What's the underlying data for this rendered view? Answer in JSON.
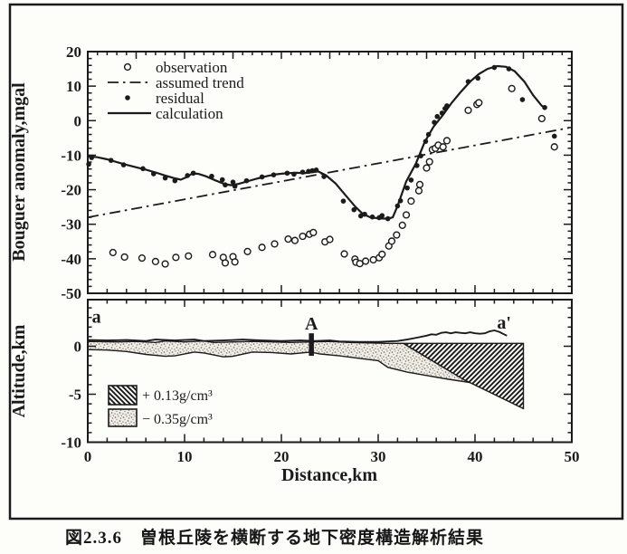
{
  "figure": {
    "caption_label": "図2.3.6",
    "caption_text": "曽根丘陵を横断する地下密度構造解析結果"
  },
  "colors": {
    "ink": "#1b1b1b",
    "paper": "#fdfdfa",
    "stipple_background": "#f2efe9",
    "stipple_dot": "#7e7a72"
  },
  "chart_data": [
    {
      "type": "scatter",
      "panel": "top",
      "title": "",
      "xlabel": "",
      "ylabel": "Bouguer anomaly,mgal",
      "xlim": [
        0,
        50
      ],
      "ylim": [
        -50,
        20
      ],
      "x_ticks": [
        0,
        10,
        20,
        30,
        40,
        50
      ],
      "y_ticks": [
        20,
        10,
        0,
        -10,
        -20,
        -30,
        -40,
        -50
      ],
      "grid": false,
      "legend_position": "top-left-inside",
      "series": [
        {
          "name": "observation",
          "type": "scatter",
          "marker": "open-circle",
          "points": [
            [
              2.6,
              -38.2
            ],
            [
              3.8,
              -39.5
            ],
            [
              5.6,
              -39.8
            ],
            [
              7.0,
              -40.8
            ],
            [
              8.0,
              -41.5
            ],
            [
              9.1,
              -39.6
            ],
            [
              10.4,
              -39.2
            ],
            [
              12.9,
              -38.8
            ],
            [
              14.0,
              -39.6
            ],
            [
              14.2,
              -41.2
            ],
            [
              15.0,
              -39.4
            ],
            [
              15.2,
              -40.9
            ],
            [
              16.5,
              -37.9
            ],
            [
              18.0,
              -36.7
            ],
            [
              19.3,
              -35.7
            ],
            [
              20.7,
              -34.3
            ],
            [
              21.4,
              -34.7
            ],
            [
              22.2,
              -33.5
            ],
            [
              22.9,
              -32.9
            ],
            [
              23.3,
              -32.4
            ],
            [
              24.5,
              -35.1
            ],
            [
              25.0,
              -34.4
            ],
            [
              26.5,
              -38.6
            ],
            [
              27.6,
              -40.1
            ],
            [
              27.7,
              -41.0
            ],
            [
              28.1,
              -41.4
            ],
            [
              28.7,
              -40.7
            ],
            [
              29.5,
              -40.3
            ],
            [
              30.1,
              -39.7
            ],
            [
              30.4,
              -38.7
            ],
            [
              31.1,
              -36.3
            ],
            [
              31.4,
              -34.9
            ],
            [
              31.9,
              -33.1
            ],
            [
              32.5,
              -30.3
            ],
            [
              32.9,
              -27.3
            ],
            [
              33.4,
              -23.3
            ],
            [
              34.2,
              -20.3
            ],
            [
              34.3,
              -18.5
            ],
            [
              35.0,
              -13.7
            ],
            [
              35.3,
              -11.9
            ],
            [
              35.6,
              -8.4
            ],
            [
              35.9,
              -8.0
            ],
            [
              36.2,
              -7.1
            ],
            [
              36.7,
              -7.6
            ],
            [
              37.1,
              -5.8
            ],
            [
              39.3,
              3.0
            ],
            [
              40.2,
              4.7
            ],
            [
              40.4,
              5.2
            ],
            [
              43.8,
              9.3
            ],
            [
              46.9,
              0.6
            ],
            [
              48.2,
              -7.6
            ]
          ]
        },
        {
          "name": "assumed trend",
          "type": "line",
          "style": "dash-dot",
          "points": [
            [
              0,
              -28
            ],
            [
              49.7,
              -2.1
            ]
          ]
        },
        {
          "name": "residual",
          "type": "scatter",
          "marker": "filled-circle",
          "points": [
            [
              0.1,
              -12.6
            ],
            [
              0.4,
              -10.7
            ],
            [
              2.4,
              -11.5
            ],
            [
              3.7,
              -12.8
            ],
            [
              5.7,
              -13.9
            ],
            [
              6.8,
              -15.4
            ],
            [
              8.0,
              -16.6
            ],
            [
              9.0,
              -17.4
            ],
            [
              10.3,
              -15.9
            ],
            [
              10.9,
              -15.2
            ],
            [
              12.8,
              -16.1
            ],
            [
              13.9,
              -17.1
            ],
            [
              14.2,
              -18.6
            ],
            [
              15.0,
              -17.8
            ],
            [
              15.2,
              -19.0
            ],
            [
              16.4,
              -17.4
            ],
            [
              18.0,
              -16.3
            ],
            [
              19.2,
              -15.7
            ],
            [
              20.6,
              -15.2
            ],
            [
              21.3,
              -15.5
            ],
            [
              22.2,
              -14.9
            ],
            [
              22.8,
              -14.7
            ],
            [
              23.2,
              -14.5
            ],
            [
              23.6,
              -14.3
            ],
            [
              24.4,
              -16.2
            ],
            [
              26.4,
              -23.3
            ],
            [
              27.5,
              -25.8
            ],
            [
              28.2,
              -27.6
            ],
            [
              28.6,
              -27.1
            ],
            [
              29.4,
              -27.9
            ],
            [
              30.1,
              -28.1
            ],
            [
              30.4,
              -27.5
            ],
            [
              31.0,
              -28.4
            ],
            [
              32.0,
              -24.7
            ],
            [
              32.3,
              -23.2
            ],
            [
              33.0,
              -19.5
            ],
            [
              33.4,
              -17.2
            ],
            [
              34.0,
              -13.0
            ],
            [
              34.4,
              -10.2
            ],
            [
              34.9,
              -6.0
            ],
            [
              35.2,
              -4.0
            ],
            [
              35.8,
              -0.5
            ],
            [
              36.1,
              1.2
            ],
            [
              36.6,
              2.2
            ],
            [
              36.9,
              3.5
            ],
            [
              37.1,
              4.3
            ],
            [
              39.3,
              11.3
            ],
            [
              40.3,
              12.3
            ],
            [
              42.0,
              15.4
            ],
            [
              43.5,
              15.0
            ],
            [
              44.9,
              6.1
            ],
            [
              47.2,
              3.8
            ],
            [
              48.2,
              -4.5
            ]
          ]
        },
        {
          "name": "calculation",
          "type": "line",
          "style": "solid",
          "points": [
            [
              0,
              -10.3
            ],
            [
              1,
              -10.6
            ],
            [
              2,
              -11.2
            ],
            [
              3,
              -12.0
            ],
            [
              4,
              -12.8
            ],
            [
              5,
              -13.5
            ],
            [
              6,
              -14.2
            ],
            [
              7,
              -15.0
            ],
            [
              8,
              -15.9
            ],
            [
              9,
              -16.7
            ],
            [
              9.6,
              -17.1
            ],
            [
              10.2,
              -16.4
            ],
            [
              10.8,
              -15.3
            ],
            [
              11.4,
              -15.4
            ],
            [
              12.2,
              -16.1
            ],
            [
              13.2,
              -17.3
            ],
            [
              14.2,
              -18.4
            ],
            [
              14.8,
              -18.7
            ],
            [
              15.6,
              -18.3
            ],
            [
              16.6,
              -17.5
            ],
            [
              17.6,
              -16.7
            ],
            [
              18.6,
              -16.0
            ],
            [
              19.6,
              -15.5
            ],
            [
              20.6,
              -15.2
            ],
            [
              21.6,
              -15.1
            ],
            [
              22.4,
              -15.2
            ],
            [
              23.2,
              -14.9
            ],
            [
              23.8,
              -14.7
            ],
            [
              24.6,
              -15.8
            ],
            [
              25.6,
              -18.2
            ],
            [
              26.6,
              -21.5
            ],
            [
              27.6,
              -24.8
            ],
            [
              28.4,
              -27.0
            ],
            [
              29.2,
              -28.0
            ],
            [
              30.0,
              -28.3
            ],
            [
              31.0,
              -28.4
            ],
            [
              31.5,
              -28.0
            ],
            [
              32.0,
              -24.7
            ],
            [
              32.9,
              -17.6
            ],
            [
              33.9,
              -12.4
            ],
            [
              34.8,
              -6.2
            ],
            [
              35.7,
              -1.8
            ],
            [
              36.7,
              1.7
            ],
            [
              37.6,
              5.2
            ],
            [
              38.5,
              8.2
            ],
            [
              39.5,
              11.3
            ],
            [
              40.4,
              13.5
            ],
            [
              41.3,
              15.0
            ],
            [
              42.3,
              15.8
            ],
            [
              43.2,
              15.6
            ],
            [
              44.1,
              14.3
            ],
            [
              45.1,
              11.3
            ],
            [
              46.0,
              7.4
            ],
            [
              46.9,
              4.3
            ],
            [
              47.3,
              3.8
            ]
          ]
        }
      ]
    },
    {
      "type": "cross-section",
      "panel": "bottom",
      "xlabel": "Distance,km",
      "ylabel": "Altitude,km",
      "xlim": [
        0,
        50
      ],
      "ylim": [
        -10,
        4.9
      ],
      "x_ticks": [
        0,
        10,
        20,
        30,
        40,
        50
      ],
      "y_ticks": [
        0,
        -5,
        -10
      ],
      "surface_profile": [
        [
          0,
          0.65
        ],
        [
          2,
          0.6
        ],
        [
          4,
          0.65
        ],
        [
          6,
          0.55
        ],
        [
          7,
          0.7
        ],
        [
          9,
          0.6
        ],
        [
          11,
          0.7
        ],
        [
          12,
          0.55
        ],
        [
          14,
          0.6
        ],
        [
          16,
          0.7
        ],
        [
          18,
          0.6
        ],
        [
          20,
          0.55
        ],
        [
          22,
          0.6
        ],
        [
          23.5,
          0.55
        ],
        [
          25,
          0.6
        ],
        [
          26,
          0.5
        ],
        [
          28,
          0.45
        ],
        [
          30,
          0.45
        ],
        [
          31,
          0.5
        ],
        [
          32,
          0.55
        ],
        [
          33,
          0.7
        ],
        [
          34,
          0.9
        ],
        [
          35,
          1.1
        ],
        [
          35.5,
          1.25
        ],
        [
          36,
          1.2
        ],
        [
          36.5,
          1.4
        ],
        [
          37,
          1.45
        ],
        [
          37.5,
          1.35
        ],
        [
          38,
          1.45
        ],
        [
          38.5,
          1.4
        ],
        [
          39,
          1.35
        ],
        [
          39.5,
          1.45
        ],
        [
          40,
          1.35
        ],
        [
          40.5,
          1.3
        ],
        [
          41,
          1.35
        ],
        [
          41.5,
          1.55
        ],
        [
          42,
          1.65
        ],
        [
          42.5,
          1.5
        ],
        [
          43,
          1.25
        ],
        [
          43.3,
          1.1
        ]
      ],
      "regions": [
        {
          "name": "high-density-wedge",
          "pattern": "hatch",
          "label": "+ 0.13g/cm³",
          "polygon": [
            [
              32.6,
              0.3
            ],
            [
              45,
              0.3
            ],
            [
              45,
              -6.5
            ],
            [
              38.8,
              -3.45
            ]
          ]
        },
        {
          "name": "low-density-layer",
          "pattern": "stipple",
          "label": "− 0.35g/cm³",
          "polygon": [
            [
              0,
              0.5
            ],
            [
              3,
              0.45
            ],
            [
              5,
              0.5
            ],
            [
              7,
              0.4
            ],
            [
              8,
              0.55
            ],
            [
              10,
              0.45
            ],
            [
              12,
              0.55
            ],
            [
              13,
              0.4
            ],
            [
              15,
              0.45
            ],
            [
              17,
              0.5
            ],
            [
              19,
              0.45
            ],
            [
              21,
              0.4
            ],
            [
              23,
              0.45
            ],
            [
              25,
              0.5
            ],
            [
              27,
              0.4
            ],
            [
              29,
              0.35
            ],
            [
              31,
              0.3
            ],
            [
              32.6,
              0.3
            ],
            [
              33,
              0.05
            ],
            [
              35,
              -1.15
            ],
            [
              37,
              -2.36
            ],
            [
              39.6,
              -3.8
            ],
            [
              37,
              -3.4
            ],
            [
              35,
              -3.05
            ],
            [
              33,
              -2.7
            ],
            [
              31,
              -2.2
            ],
            [
              30,
              -1.5
            ],
            [
              28,
              -1.25
            ],
            [
              26,
              -1.0
            ],
            [
              24,
              -0.8
            ],
            [
              23,
              -0.6
            ],
            [
              21,
              -0.8
            ],
            [
              19,
              -0.65
            ],
            [
              17,
              -0.6
            ],
            [
              15,
              -1.05
            ],
            [
              14,
              -1.1
            ],
            [
              12,
              -0.7
            ],
            [
              11,
              -0.6
            ],
            [
              9,
              -1.0
            ],
            [
              8,
              -1.05
            ],
            [
              6,
              -0.85
            ],
            [
              4,
              -0.55
            ],
            [
              2,
              -0.4
            ],
            [
              0,
              -0.35
            ]
          ]
        }
      ],
      "annotations": [
        {
          "text": "a",
          "x": 0.9,
          "y": 2.45
        },
        {
          "text": "A",
          "x": 23.1,
          "y": 1.75,
          "bar": {
            "x": 23.1,
            "y_top": 1.35,
            "y_bottom": -1.0
          }
        },
        {
          "text": "a'",
          "x": 43.0,
          "y": 1.85
        }
      ]
    }
  ]
}
